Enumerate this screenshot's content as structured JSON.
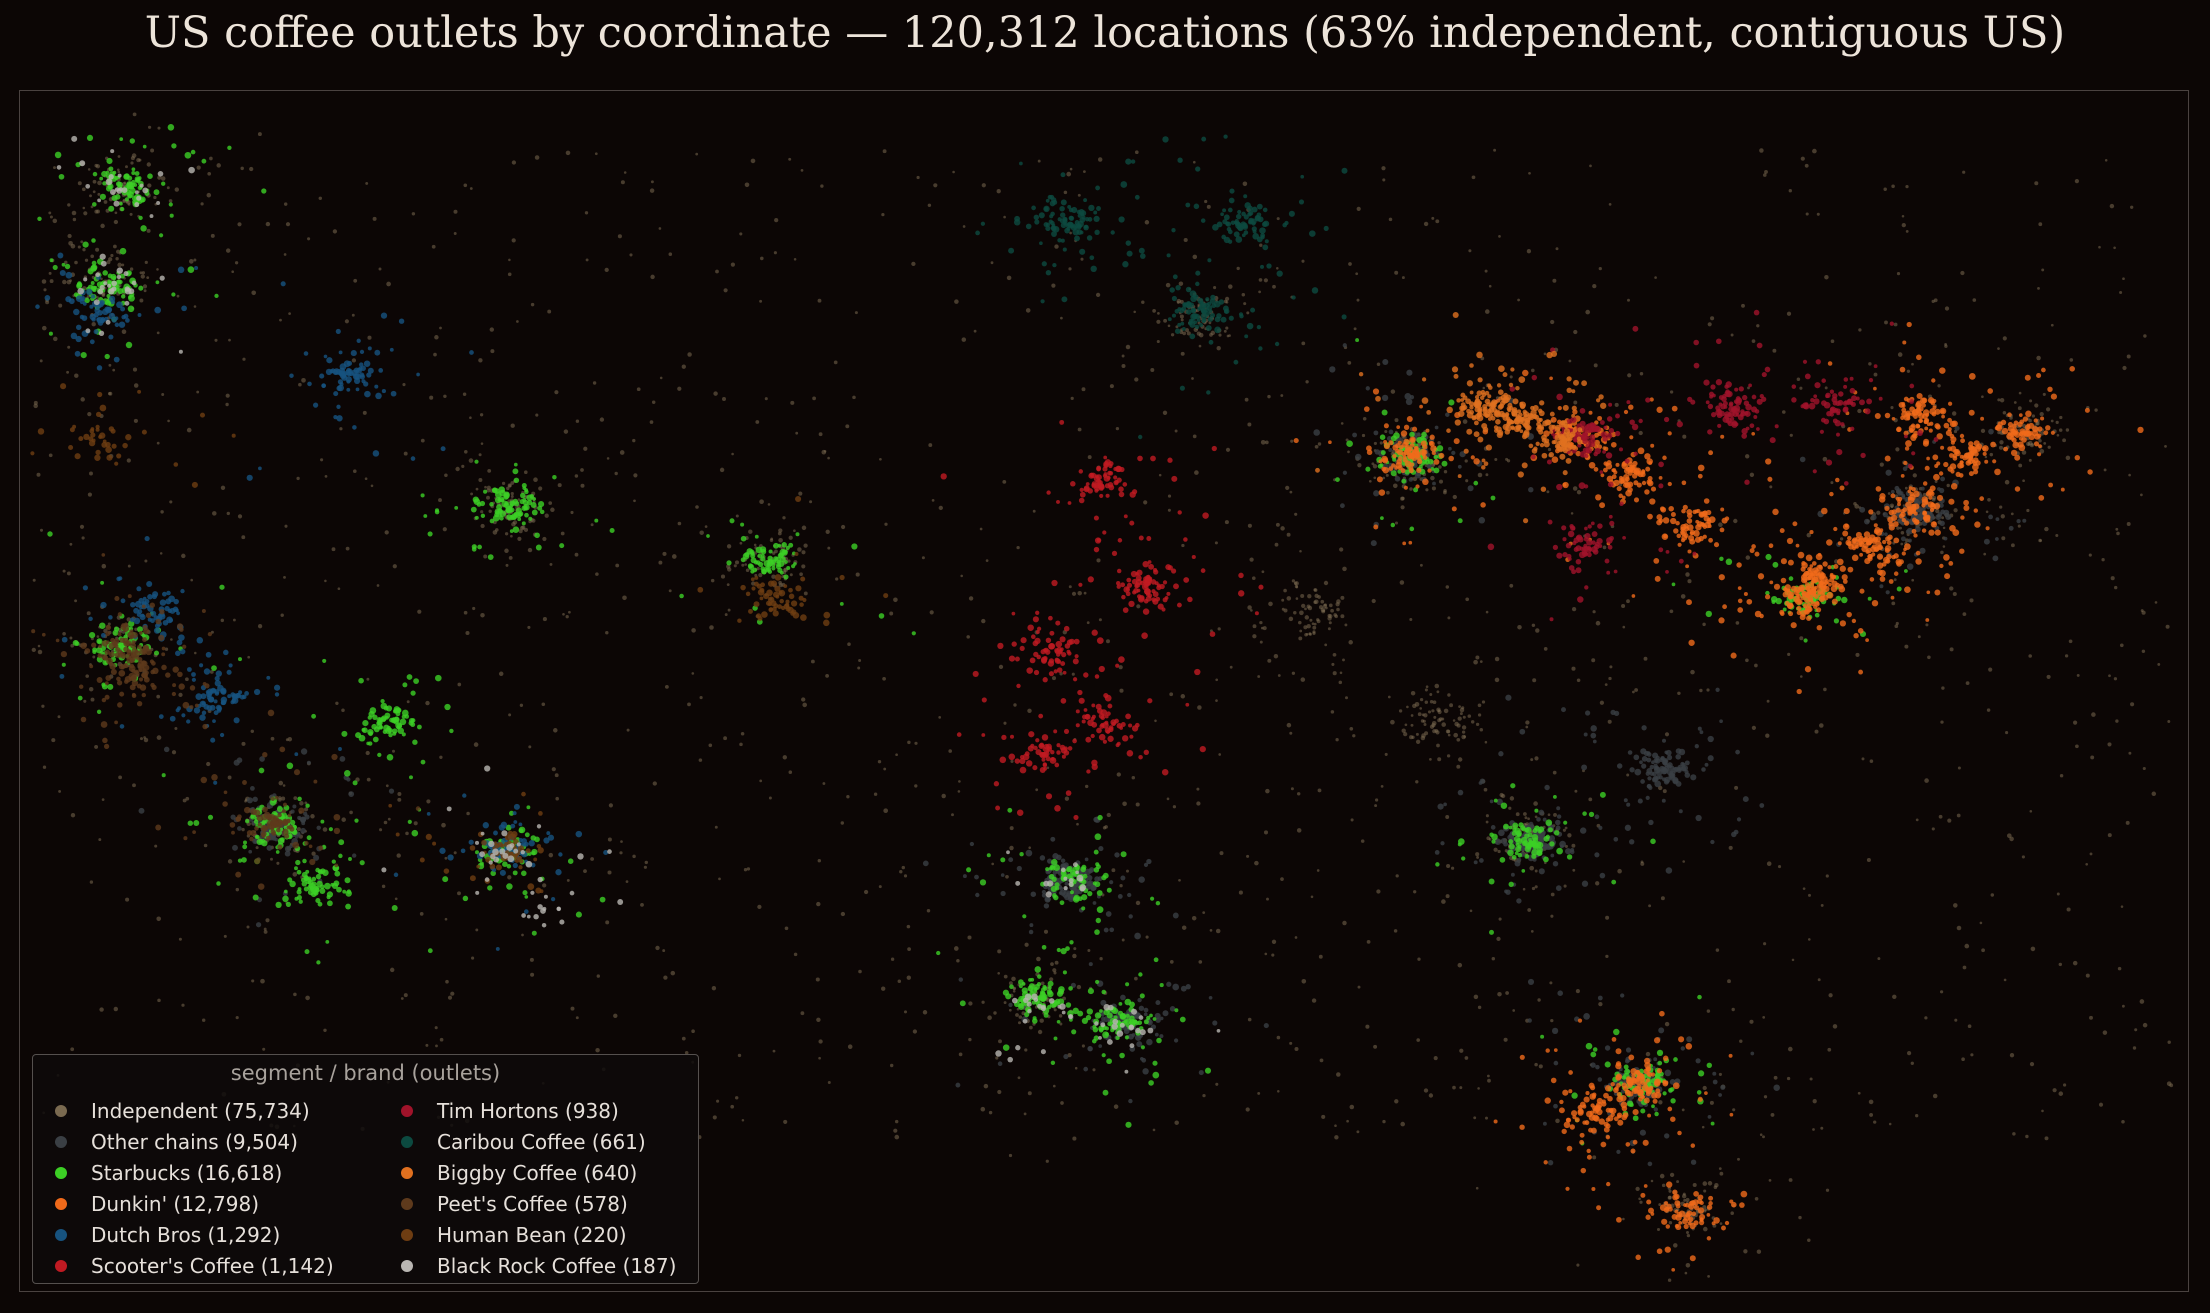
{
  "title": "US coffee outlets by coordinate — 120,312 locations (63% independent, contiguous US)",
  "chart_data": {
    "type": "scatter",
    "title": "US coffee outlets by coordinate — 120,312 locations (63% independent, contiguous US)",
    "xlabel": "",
    "ylabel": "",
    "x_field": "longitude",
    "y_field": "latitude",
    "xlim": [
      -124.8,
      -66.9
    ],
    "ylim": [
      24.3,
      49.4
    ],
    "grid": false,
    "axes_visible": false,
    "legend": {
      "title": "segment / brand (outlets)",
      "placement": "lower-left",
      "columns": 2
    },
    "total_locations": 120312,
    "independent_share_percent": 63,
    "series": [
      {
        "name": "Independent",
        "count": 75734,
        "label": "Independent (75,734)",
        "color": "#7a6a50",
        "hubs": [
          [
            -122.3,
            47.6
          ],
          [
            -122.4,
            37.8
          ],
          [
            -118.2,
            34.0
          ],
          [
            -104.9,
            39.7
          ],
          [
            -97.7,
            30.3
          ],
          [
            -87.6,
            41.9
          ],
          [
            -84.4,
            33.7
          ],
          [
            -74.0,
            40.7
          ],
          [
            -71.1,
            42.4
          ],
          [
            -122.7,
            45.5
          ],
          [
            -111.9,
            40.8
          ],
          [
            -93.3,
            44.9
          ],
          [
            -80.2,
            25.8
          ],
          [
            -86.8,
            36.2
          ],
          [
            -90.2,
            38.6
          ]
        ]
      },
      {
        "name": "Other chains",
        "count": 9504,
        "label": "Other chains (9,504)",
        "color": "#3a3f44",
        "hubs": [
          [
            -118.2,
            34.0
          ],
          [
            -96.8,
            32.8
          ],
          [
            -95.4,
            29.8
          ],
          [
            -84.4,
            33.7
          ],
          [
            -74.0,
            40.7
          ],
          [
            -87.6,
            41.9
          ],
          [
            -80.8,
            35.2
          ],
          [
            -81.4,
            28.5
          ]
        ]
      },
      {
        "name": "Starbucks",
        "count": 16618,
        "label": "Starbucks (16,618)",
        "color": "#3ccf25",
        "hubs": [
          [
            -122.3,
            47.6
          ],
          [
            -122.7,
            45.5
          ],
          [
            -122.4,
            37.8
          ],
          [
            -118.2,
            34.0
          ],
          [
            -117.2,
            32.7
          ],
          [
            -112.0,
            33.5
          ],
          [
            -104.9,
            39.7
          ],
          [
            -111.9,
            40.8
          ],
          [
            -97.7,
            30.3
          ],
          [
            -96.8,
            32.8
          ],
          [
            -95.4,
            29.8
          ],
          [
            -84.4,
            33.7
          ],
          [
            -87.6,
            41.9
          ],
          [
            -115.2,
            36.2
          ],
          [
            -77.0,
            38.9
          ],
          [
            -81.4,
            28.5
          ]
        ]
      },
      {
        "name": "Dunkin'",
        "count": 12798,
        "label": "Dunkin' (12,798)",
        "color": "#f06a1a",
        "hubs": [
          [
            -74.0,
            40.7
          ],
          [
            -71.1,
            42.4
          ],
          [
            -75.2,
            40.0
          ],
          [
            -72.7,
            41.8
          ],
          [
            -87.6,
            41.9
          ],
          [
            -80.2,
            25.8
          ],
          [
            -81.4,
            28.5
          ],
          [
            -82.5,
            27.9
          ],
          [
            -83.0,
            42.3
          ],
          [
            -81.7,
            41.5
          ],
          [
            -80.0,
            40.4
          ],
          [
            -76.6,
            39.3
          ],
          [
            -77.0,
            38.9
          ],
          [
            -73.8,
            42.7
          ]
        ]
      },
      {
        "name": "Dutch Bros",
        "count": 1292,
        "label": "Dutch Bros (1,292)",
        "color": "#17537f",
        "hubs": [
          [
            -123.0,
            44.9
          ],
          [
            -121.5,
            38.6
          ],
          [
            -119.8,
            36.7
          ],
          [
            -112.0,
            33.5
          ],
          [
            -116.2,
            43.6
          ]
        ]
      },
      {
        "name": "Scooter's Coffee",
        "count": 1142,
        "label": "Scooter's Coffee (1,142)",
        "color": "#c01a22",
        "hubs": [
          [
            -96.0,
            41.3
          ],
          [
            -97.3,
            37.7
          ],
          [
            -94.6,
            39.1
          ],
          [
            -95.9,
            36.2
          ],
          [
            -97.5,
            35.5
          ]
        ]
      },
      {
        "name": "Tim Hortons",
        "count": 938,
        "label": "Tim Hortons (938)",
        "color": "#a0132a",
        "hubs": [
          [
            -78.9,
            42.9
          ],
          [
            -83.0,
            42.3
          ],
          [
            -82.9,
            40.0
          ],
          [
            -76.1,
            43.0
          ]
        ]
      },
      {
        "name": "Caribou Coffee",
        "count": 661,
        "label": "Caribou Coffee (661)",
        "color": "#0c4a40",
        "hubs": [
          [
            -93.3,
            44.9
          ],
          [
            -96.8,
            46.9
          ],
          [
            -92.1,
            46.8
          ]
        ]
      },
      {
        "name": "Biggby Coffee",
        "count": 640,
        "label": "Biggby Coffee (640)",
        "color": "#e0701f",
        "hubs": [
          [
            -84.6,
            42.7
          ],
          [
            -85.7,
            42.9
          ],
          [
            -83.7,
            42.3
          ]
        ]
      },
      {
        "name": "Peet's Coffee",
        "count": 578,
        "label": "Peet's Coffee (578)",
        "color": "#5e3a1c",
        "hubs": [
          [
            -122.3,
            37.8
          ],
          [
            -121.9,
            37.3
          ],
          [
            -118.3,
            34.1
          ]
        ]
      },
      {
        "name": "Human Bean",
        "count": 220,
        "label": "Human Bean (220)",
        "color": "#6e3d12",
        "hubs": [
          [
            -122.9,
            42.3
          ],
          [
            -104.8,
            38.8
          ],
          [
            -112.0,
            33.5
          ]
        ]
      },
      {
        "name": "Black Rock Coffee",
        "count": 187,
        "label": "Black Rock Coffee (187)",
        "color": "#b9b6b2",
        "hubs": [
          [
            -122.7,
            45.5
          ],
          [
            -112.0,
            33.5
          ],
          [
            -111.0,
            32.2
          ],
          [
            -97.7,
            30.3
          ],
          [
            -96.8,
            32.8
          ],
          [
            -95.4,
            29.8
          ],
          [
            -122.3,
            47.6
          ]
        ]
      }
    ]
  }
}
